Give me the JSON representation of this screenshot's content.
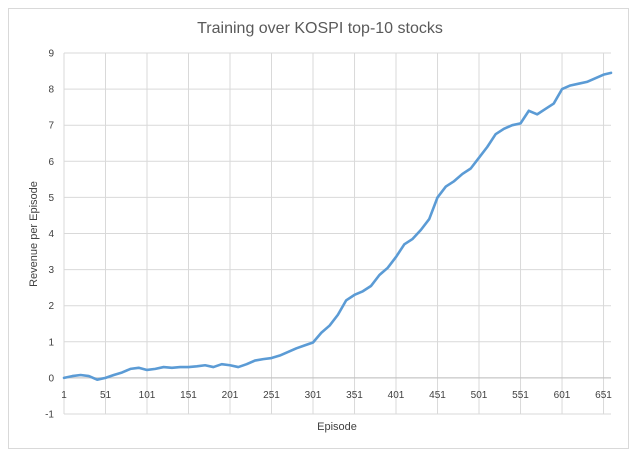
{
  "chart_data": {
    "type": "line",
    "title": "Training over KOSPI top-10 stocks",
    "xlabel": "Episode",
    "ylabel": "Revenue per Episode",
    "xlim": [
      1,
      660
    ],
    "ylim": [
      -1,
      9
    ],
    "x_ticks": [
      1,
      51,
      101,
      151,
      201,
      251,
      301,
      351,
      401,
      451,
      501,
      551,
      601,
      651
    ],
    "y_ticks": [
      -1,
      0,
      1,
      2,
      3,
      4,
      5,
      6,
      7,
      8,
      9
    ],
    "grid": true,
    "legend": "none",
    "series_color": "#5b9bd5",
    "series": [
      {
        "x": [
          1,
          11,
          21,
          31,
          41,
          51,
          61,
          71,
          81,
          91,
          101,
          111,
          121,
          131,
          141,
          151,
          161,
          171,
          181,
          191,
          201,
          211,
          221,
          231,
          241,
          251,
          261,
          271,
          281,
          291,
          301,
          311,
          321,
          331,
          341,
          351,
          361,
          371,
          381,
          391,
          401,
          411,
          421,
          431,
          441,
          451,
          461,
          471,
          481,
          491,
          501,
          511,
          521,
          531,
          541,
          551,
          561,
          571,
          581,
          591,
          601,
          611,
          621,
          631,
          641,
          651,
          660
        ],
        "y": [
          0.0,
          0.05,
          0.08,
          0.05,
          -0.05,
          0.0,
          0.08,
          0.15,
          0.25,
          0.28,
          0.22,
          0.25,
          0.3,
          0.28,
          0.3,
          0.3,
          0.32,
          0.35,
          0.3,
          0.38,
          0.35,
          0.3,
          0.38,
          0.48,
          0.52,
          0.55,
          0.62,
          0.72,
          0.82,
          0.9,
          0.98,
          1.25,
          1.45,
          1.75,
          2.15,
          2.3,
          2.4,
          2.55,
          2.85,
          3.05,
          3.35,
          3.7,
          3.85,
          4.1,
          4.4,
          5.0,
          5.3,
          5.45,
          5.65,
          5.8,
          6.1,
          6.4,
          6.75,
          6.9,
          7.0,
          7.05,
          7.4,
          7.3,
          7.45,
          7.6,
          8.0,
          8.1,
          8.15,
          8.2,
          8.3,
          8.4,
          8.45
        ]
      }
    ]
  }
}
